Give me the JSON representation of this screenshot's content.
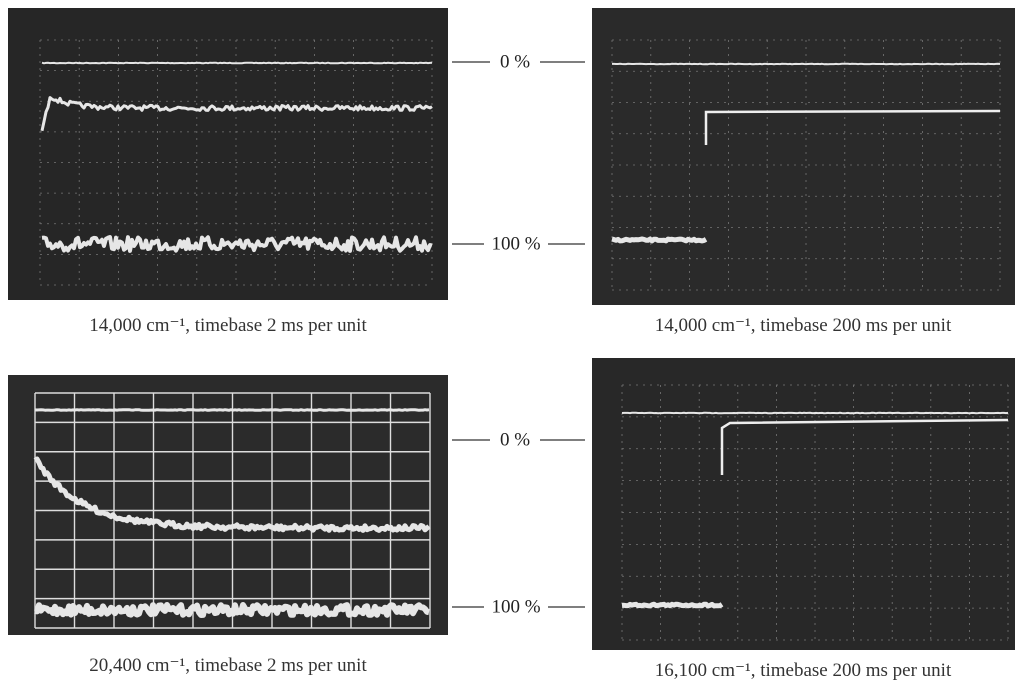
{
  "panels": [
    {
      "caption": "14,000 cm⁻¹, timebase 2 ms per unit"
    },
    {
      "caption": "14,000 cm⁻¹, timebase 200 ms per unit"
    },
    {
      "caption": "20,400 cm⁻¹, timebase 2 ms per unit"
    },
    {
      "caption": "16,100 cm⁻¹, timebase 200 ms per unit"
    }
  ],
  "scale_labels": [
    {
      "top": "0 %",
      "bottom": "100 %"
    },
    {
      "top": "0 %",
      "bottom": "100 %"
    }
  ]
}
